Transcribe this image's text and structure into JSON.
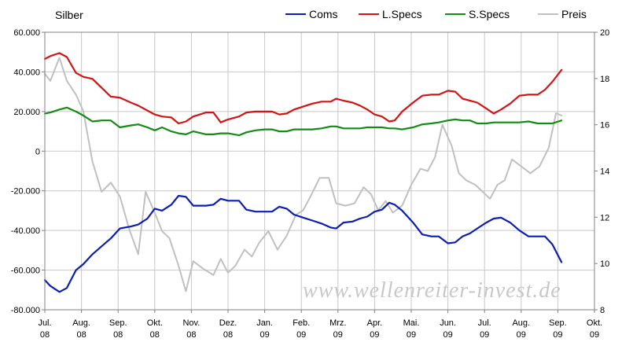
{
  "chart_data": {
    "type": "line",
    "title": "Silber",
    "watermark": "www.wellenreiter-invest.de",
    "left_axis": {
      "min": -80000,
      "max": 60000,
      "step": 20000,
      "tick_labels": [
        "60.000",
        "40.000",
        "20.000",
        "0",
        "-20.000",
        "-40.000",
        "-60.000",
        "-80.000"
      ]
    },
    "right_axis": {
      "min": 8,
      "max": 20,
      "step": 2,
      "tick_labels": [
        "20",
        "18",
        "16",
        "14",
        "12",
        "10",
        "8"
      ]
    },
    "x_months": [
      {
        "m": "Jul.",
        "y": "08"
      },
      {
        "m": "Aug.",
        "y": "08"
      },
      {
        "m": "Sep.",
        "y": "08"
      },
      {
        "m": "Okt.",
        "y": "08"
      },
      {
        "m": "Nov.",
        "y": "08"
      },
      {
        "m": "Dez.",
        "y": "08"
      },
      {
        "m": "Jan.",
        "y": "09"
      },
      {
        "m": "Feb.",
        "y": "09"
      },
      {
        "m": "Mrz.",
        "y": "09"
      },
      {
        "m": "Apr.",
        "y": "09"
      },
      {
        "m": "Mai.",
        "y": "09"
      },
      {
        "m": "Jun.",
        "y": "09"
      },
      {
        "m": "Jul.",
        "y": "09"
      },
      {
        "m": "Aug.",
        "y": "09"
      },
      {
        "m": "Sep.",
        "y": "09"
      },
      {
        "m": "Okt.",
        "y": "09"
      }
    ],
    "grid": true,
    "legend_position": "top-right",
    "series": [
      {
        "name": "Coms",
        "color": "#0a1eb4",
        "axis": "left",
        "values": [
          [
            0.0,
            -65000
          ],
          [
            0.15,
            -68000
          ],
          [
            0.4,
            -71000
          ],
          [
            0.6,
            -69000
          ],
          [
            0.85,
            -60000
          ],
          [
            1.05,
            -57000
          ],
          [
            1.3,
            -52000
          ],
          [
            1.55,
            -48000
          ],
          [
            1.8,
            -44000
          ],
          [
            2.05,
            -39000
          ],
          [
            2.35,
            -38000
          ],
          [
            2.55,
            -37000
          ],
          [
            2.8,
            -34000
          ],
          [
            3.0,
            -29000
          ],
          [
            3.2,
            -30000
          ],
          [
            3.45,
            -27000
          ],
          [
            3.65,
            -22500
          ],
          [
            3.85,
            -23000
          ],
          [
            4.05,
            -27500
          ],
          [
            4.4,
            -27500
          ],
          [
            4.6,
            -27000
          ],
          [
            4.8,
            -24000
          ],
          [
            5.0,
            -25000
          ],
          [
            5.3,
            -25000
          ],
          [
            5.5,
            -29500
          ],
          [
            5.75,
            -30500
          ],
          [
            6.0,
            -30500
          ],
          [
            6.2,
            -30500
          ],
          [
            6.4,
            -28000
          ],
          [
            6.6,
            -29000
          ],
          [
            6.8,
            -32000
          ],
          [
            7.05,
            -33500
          ],
          [
            7.3,
            -35000
          ],
          [
            7.55,
            -36500
          ],
          [
            7.8,
            -38500
          ],
          [
            7.95,
            -39000
          ],
          [
            8.15,
            -36000
          ],
          [
            8.4,
            -35500
          ],
          [
            8.6,
            -34000
          ],
          [
            8.8,
            -33000
          ],
          [
            9.0,
            -30500
          ],
          [
            9.2,
            -29500
          ],
          [
            9.4,
            -26000
          ],
          [
            9.55,
            -27000
          ],
          [
            9.75,
            -30000
          ],
          [
            10.05,
            -36000
          ],
          [
            10.3,
            -42000
          ],
          [
            10.55,
            -43000
          ],
          [
            10.75,
            -43000
          ],
          [
            11.0,
            -46500
          ],
          [
            11.2,
            -46000
          ],
          [
            11.4,
            -43000
          ],
          [
            11.6,
            -41500
          ],
          [
            11.8,
            -39000
          ],
          [
            12.05,
            -36000
          ],
          [
            12.25,
            -34000
          ],
          [
            12.45,
            -33500
          ],
          [
            12.7,
            -36000
          ],
          [
            12.95,
            -40000
          ],
          [
            13.2,
            -43000
          ],
          [
            13.45,
            -43000
          ],
          [
            13.65,
            -43000
          ],
          [
            13.85,
            -47000
          ],
          [
            14.1,
            -56000
          ]
        ]
      },
      {
        "name": "L.Specs",
        "color": "#d21414",
        "axis": "left",
        "values": [
          [
            0.0,
            46500
          ],
          [
            0.15,
            48000
          ],
          [
            0.4,
            49500
          ],
          [
            0.6,
            47500
          ],
          [
            0.85,
            39500
          ],
          [
            1.05,
            37500
          ],
          [
            1.3,
            36500
          ],
          [
            1.55,
            32000
          ],
          [
            1.8,
            27500
          ],
          [
            2.05,
            27000
          ],
          [
            2.35,
            24500
          ],
          [
            2.55,
            23000
          ],
          [
            2.8,
            20500
          ],
          [
            3.0,
            18500
          ],
          [
            3.2,
            17500
          ],
          [
            3.45,
            17000
          ],
          [
            3.65,
            14000
          ],
          [
            3.85,
            15000
          ],
          [
            4.05,
            17500
          ],
          [
            4.4,
            19500
          ],
          [
            4.6,
            19500
          ],
          [
            4.8,
            14500
          ],
          [
            5.0,
            16000
          ],
          [
            5.3,
            17500
          ],
          [
            5.5,
            19500
          ],
          [
            5.75,
            20000
          ],
          [
            6.0,
            20000
          ],
          [
            6.2,
            20000
          ],
          [
            6.4,
            18500
          ],
          [
            6.6,
            19000
          ],
          [
            6.8,
            21000
          ],
          [
            7.05,
            22500
          ],
          [
            7.3,
            24000
          ],
          [
            7.55,
            25000
          ],
          [
            7.8,
            25000
          ],
          [
            7.95,
            26500
          ],
          [
            8.15,
            25500
          ],
          [
            8.4,
            24500
          ],
          [
            8.6,
            23000
          ],
          [
            8.8,
            21000
          ],
          [
            9.0,
            18500
          ],
          [
            9.2,
            17500
          ],
          [
            9.4,
            15000
          ],
          [
            9.55,
            15500
          ],
          [
            9.75,
            20000
          ],
          [
            10.05,
            24500
          ],
          [
            10.3,
            28000
          ],
          [
            10.55,
            28500
          ],
          [
            10.75,
            28500
          ],
          [
            11.0,
            30500
          ],
          [
            11.2,
            30000
          ],
          [
            11.4,
            26500
          ],
          [
            11.6,
            25500
          ],
          [
            11.8,
            24500
          ],
          [
            12.05,
            21500
          ],
          [
            12.25,
            19000
          ],
          [
            12.45,
            21000
          ],
          [
            12.7,
            24000
          ],
          [
            12.95,
            28000
          ],
          [
            13.2,
            28500
          ],
          [
            13.45,
            28500
          ],
          [
            13.65,
            31000
          ],
          [
            13.85,
            35000
          ],
          [
            14.1,
            41000
          ]
        ]
      },
      {
        "name": "S.Specs",
        "color": "#138c13",
        "axis": "left",
        "values": [
          [
            0.0,
            19000
          ],
          [
            0.15,
            19500
          ],
          [
            0.4,
            21000
          ],
          [
            0.6,
            22000
          ],
          [
            0.85,
            20000
          ],
          [
            1.05,
            18000
          ],
          [
            1.3,
            15000
          ],
          [
            1.55,
            15500
          ],
          [
            1.8,
            15500
          ],
          [
            2.05,
            12000
          ],
          [
            2.35,
            13000
          ],
          [
            2.55,
            13500
          ],
          [
            2.8,
            12000
          ],
          [
            3.0,
            10500
          ],
          [
            3.2,
            12000
          ],
          [
            3.45,
            10000
          ],
          [
            3.65,
            9000
          ],
          [
            3.85,
            8500
          ],
          [
            4.05,
            10000
          ],
          [
            4.4,
            8500
          ],
          [
            4.6,
            8500
          ],
          [
            4.8,
            9000
          ],
          [
            5.0,
            9000
          ],
          [
            5.3,
            8000
          ],
          [
            5.5,
            9500
          ],
          [
            5.75,
            10500
          ],
          [
            6.0,
            11000
          ],
          [
            6.2,
            11000
          ],
          [
            6.4,
            10000
          ],
          [
            6.6,
            10000
          ],
          [
            6.8,
            11000
          ],
          [
            7.05,
            11000
          ],
          [
            7.3,
            11000
          ],
          [
            7.55,
            11500
          ],
          [
            7.8,
            12500
          ],
          [
            7.95,
            12500
          ],
          [
            8.15,
            11500
          ],
          [
            8.4,
            11500
          ],
          [
            8.6,
            11500
          ],
          [
            8.8,
            12000
          ],
          [
            9.0,
            12000
          ],
          [
            9.2,
            12000
          ],
          [
            9.4,
            11500
          ],
          [
            9.55,
            11500
          ],
          [
            9.75,
            11000
          ],
          [
            10.05,
            12000
          ],
          [
            10.3,
            13500
          ],
          [
            10.55,
            14000
          ],
          [
            10.75,
            14500
          ],
          [
            11.0,
            15500
          ],
          [
            11.2,
            16000
          ],
          [
            11.4,
            15500
          ],
          [
            11.6,
            15500
          ],
          [
            11.8,
            14000
          ],
          [
            12.05,
            14000
          ],
          [
            12.25,
            14500
          ],
          [
            12.45,
            14500
          ],
          [
            12.7,
            14500
          ],
          [
            12.95,
            14500
          ],
          [
            13.2,
            15000
          ],
          [
            13.45,
            14000
          ],
          [
            13.65,
            14000
          ],
          [
            13.85,
            14000
          ],
          [
            14.1,
            15500
          ]
        ]
      },
      {
        "name": "Preis",
        "color": "#c0c0c0",
        "axis": "right",
        "values": [
          [
            0.0,
            18.2
          ],
          [
            0.15,
            17.9
          ],
          [
            0.4,
            18.9
          ],
          [
            0.6,
            17.9
          ],
          [
            0.85,
            17.3
          ],
          [
            1.05,
            16.6
          ],
          [
            1.3,
            14.4
          ],
          [
            1.55,
            13.1
          ],
          [
            1.8,
            13.5
          ],
          [
            2.05,
            12.9
          ],
          [
            2.3,
            11.5
          ],
          [
            2.55,
            10.4
          ],
          [
            2.75,
            13.1
          ],
          [
            3.0,
            12.2
          ],
          [
            3.2,
            11.4
          ],
          [
            3.4,
            11.1
          ],
          [
            3.65,
            9.9
          ],
          [
            3.85,
            8.8
          ],
          [
            4.05,
            10.1
          ],
          [
            4.3,
            9.8
          ],
          [
            4.6,
            9.5
          ],
          [
            4.8,
            10.2
          ],
          [
            5.0,
            9.6
          ],
          [
            5.2,
            9.9
          ],
          [
            5.45,
            10.6
          ],
          [
            5.65,
            10.3
          ],
          [
            5.85,
            10.9
          ],
          [
            6.1,
            11.4
          ],
          [
            6.35,
            10.6
          ],
          [
            6.6,
            11.2
          ],
          [
            6.85,
            12.1
          ],
          [
            7.05,
            12.3
          ],
          [
            7.25,
            12.9
          ],
          [
            7.5,
            13.7
          ],
          [
            7.75,
            13.7
          ],
          [
            7.95,
            12.6
          ],
          [
            8.2,
            12.5
          ],
          [
            8.45,
            12.6
          ],
          [
            8.7,
            13.3
          ],
          [
            8.9,
            13.0
          ],
          [
            9.1,
            12.3
          ],
          [
            9.3,
            12.7
          ],
          [
            9.5,
            12.2
          ],
          [
            9.75,
            12.5
          ],
          [
            10.0,
            13.4
          ],
          [
            10.25,
            14.1
          ],
          [
            10.45,
            14.0
          ],
          [
            10.65,
            14.6
          ],
          [
            10.85,
            16.0
          ],
          [
            11.1,
            15.1
          ],
          [
            11.3,
            13.9
          ],
          [
            11.5,
            13.6
          ],
          [
            11.75,
            13.4
          ],
          [
            11.95,
            13.1
          ],
          [
            12.15,
            12.8
          ],
          [
            12.35,
            13.4
          ],
          [
            12.55,
            13.6
          ],
          [
            12.75,
            14.5
          ],
          [
            13.0,
            14.2
          ],
          [
            13.25,
            13.9
          ],
          [
            13.5,
            14.2
          ],
          [
            13.75,
            15.0
          ],
          [
            13.95,
            16.5
          ],
          [
            14.1,
            16.4
          ]
        ]
      }
    ]
  }
}
